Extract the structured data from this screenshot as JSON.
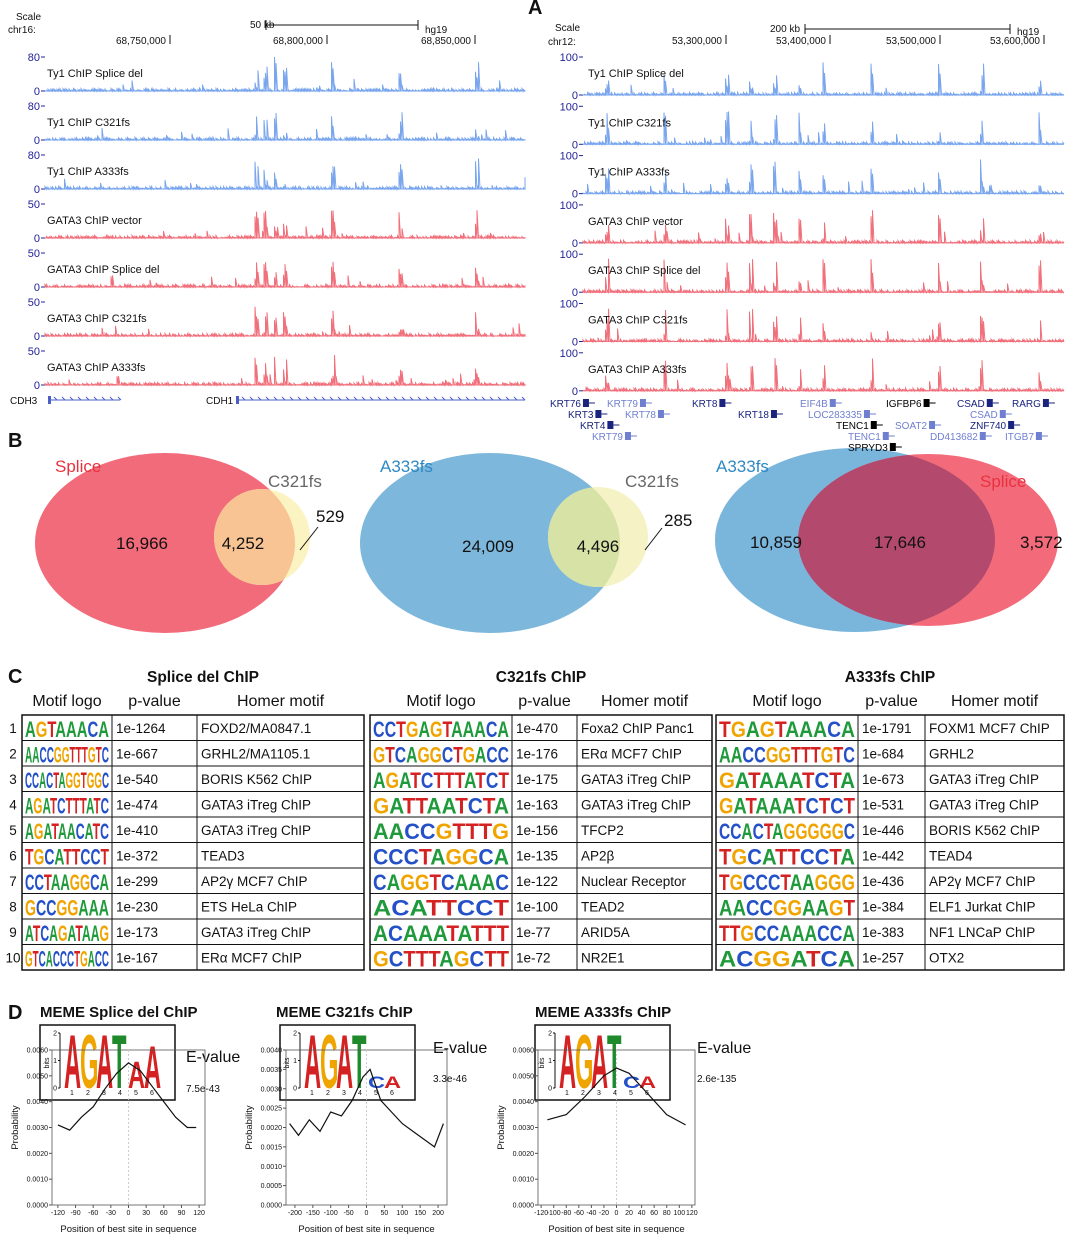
{
  "panel_labels": [
    "A",
    "B",
    "C",
    "D"
  ],
  "genome_browser": [
    {
      "scale_label": "Scale",
      "chrom": "chr16:",
      "scale_bar": "50 kb",
      "assembly": "hg19",
      "positions": [
        "68,750,000",
        "68,800,000",
        "68,850,000"
      ],
      "tracks": [
        {
          "name": "Ty1 ChIP Splice del",
          "color": "#7aa6ee",
          "ylim": [
            0,
            80
          ],
          "yticks": [
            0,
            80
          ]
        },
        {
          "name": "Ty1 ChIP C321fs",
          "color": "#7aa6ee",
          "ylim": [
            0,
            80
          ],
          "yticks": [
            0,
            80
          ]
        },
        {
          "name": "Ty1 ChIP A333fs",
          "color": "#7aa6ee",
          "ylim": [
            0,
            80
          ],
          "yticks": [
            0,
            80
          ]
        },
        {
          "name": "GATA3 ChIP vector",
          "color": "#f0707c",
          "ylim": [
            0,
            50
          ],
          "yticks": [
            0,
            50
          ]
        },
        {
          "name": "GATA3 ChIP Splice del",
          "color": "#f0707c",
          "ylim": [
            0,
            50
          ],
          "yticks": [
            0,
            50
          ]
        },
        {
          "name": "GATA3 ChIP C321fs",
          "color": "#f0707c",
          "ylim": [
            0,
            50
          ],
          "yticks": [
            0,
            50
          ]
        },
        {
          "name": "GATA3 ChIP A333fs",
          "color": "#f0707c",
          "ylim": [
            0,
            50
          ],
          "yticks": [
            0,
            50
          ]
        }
      ],
      "genes": [
        "CDH3",
        "CDH1"
      ]
    },
    {
      "scale_label": "Scale",
      "chrom": "chr12:",
      "scale_bar": "200 kb",
      "assembly": "hg19",
      "positions": [
        "53,300,000",
        "53,400,000",
        "53,500,000",
        "53,600,000"
      ],
      "tracks": [
        {
          "name": "Ty1 ChIP Splice del",
          "color": "#7aa6ee",
          "ylim": [
            0,
            100
          ],
          "yticks": [
            0,
            100
          ]
        },
        {
          "name": "Ty1 ChIP C321fs",
          "color": "#7aa6ee",
          "ylim": [
            0,
            100
          ],
          "yticks": [
            0,
            100
          ]
        },
        {
          "name": "Ty1 ChIP A333fs",
          "color": "#7aa6ee",
          "ylim": [
            0,
            100
          ],
          "yticks": [
            0,
            100
          ]
        },
        {
          "name": "GATA3 ChIP vector",
          "color": "#f0707c",
          "ylim": [
            0,
            100
          ],
          "yticks": [
            0,
            100
          ]
        },
        {
          "name": "GATA3 ChIP Splice del",
          "color": "#f0707c",
          "ylim": [
            0,
            100
          ],
          "yticks": [
            0,
            100
          ]
        },
        {
          "name": "GATA3 ChIP C321fs",
          "color": "#f0707c",
          "ylim": [
            0,
            100
          ],
          "yticks": [
            0,
            100
          ]
        },
        {
          "name": "GATA3 ChIP A333fs",
          "color": "#f0707c",
          "ylim": [
            0,
            100
          ],
          "yticks": [
            0,
            100
          ]
        }
      ],
      "genes": [
        "KRT76",
        "KRT79",
        "KRT3",
        "KRT78",
        "KRT4",
        "KRT79",
        "KRT8",
        "KRT18",
        "EIF4B",
        "LOC283335",
        "IGFBP6",
        "CSAD",
        "RARG",
        "TENC1",
        "SOAT2",
        "CSAD",
        "ZNF740",
        "TENC1",
        "DD413682",
        "ITGB7",
        "SPRYD3"
      ]
    }
  ],
  "venns": [
    {
      "labels": [
        "Splice",
        "C321fs"
      ],
      "counts": [
        "16,966",
        "4,252",
        "529"
      ]
    },
    {
      "labels": [
        "A333fs",
        "C321fs"
      ],
      "counts": [
        "24,009",
        "4,496",
        "285"
      ]
    },
    {
      "labels": [
        "A333fs",
        "Splice"
      ],
      "counts": [
        "10,859",
        "17,646",
        "3,572"
      ]
    }
  ],
  "motif_panel": {
    "row_numbers": [
      "1",
      "2",
      "3",
      "4",
      "5",
      "6",
      "7",
      "8",
      "9",
      "10"
    ],
    "tables": [
      {
        "title": "Splice del ChIP",
        "columns": [
          "Motif logo",
          "p-value",
          "Homer motif"
        ],
        "rows": [
          {
            "logo": "AGTAAACA",
            "p_value": "1e-1264",
            "motif": "FOXD2/MA0847.1"
          },
          {
            "logo": "AACCGGTTTGTC",
            "p_value": "1e-667",
            "motif": "GRHL2/MA1105.1"
          },
          {
            "logo": "CCACTAGGTGGC",
            "p_value": "1e-540",
            "motif": "BORIS K562 ChIP"
          },
          {
            "logo": "AGATCTTTATC",
            "p_value": "1e-474",
            "motif": "GATA3 iTreg ChIP"
          },
          {
            "logo": "AGATAACATC",
            "p_value": "1e-410",
            "motif": "GATA3 iTreg ChIP"
          },
          {
            "logo": "TGCATTCCT",
            "p_value": "1e-372",
            "motif": "TEAD3"
          },
          {
            "logo": "CCTAAGGCA",
            "p_value": "1e-299",
            "motif": "AP2γ MCF7 ChIP"
          },
          {
            "logo": "GCCGGAAA",
            "p_value": "1e-230",
            "motif": "ETS HeLa ChIP"
          },
          {
            "logo": "ATCAGATAAG",
            "p_value": "1e-173",
            "motif": "GATA3 iTreg ChIP"
          },
          {
            "logo": "GTCACCCTGACC",
            "p_value": "1e-167",
            "motif": "ERα MCF7 ChIP"
          }
        ]
      },
      {
        "title": "C321fs ChIP",
        "columns": [
          "Motif logo",
          "p-value",
          "Homer motif"
        ],
        "rows": [
          {
            "logo": "CCTGAGTAAACA",
            "p_value": "1e-470",
            "motif": "Foxa2 ChIP Panc1"
          },
          {
            "logo": "GTCAGGCTGACC",
            "p_value": "1e-176",
            "motif": "ERα MCF7 ChIP"
          },
          {
            "logo": "AGATCTTTATCT",
            "p_value": "1e-175",
            "motif": "GATA3 iTreg ChIP"
          },
          {
            "logo": "GATTAATCTA",
            "p_value": "1e-163",
            "motif": "GATA3 iTreg ChIP"
          },
          {
            "logo": "AACCGTTTG",
            "p_value": "1e-156",
            "motif": "TFCP2"
          },
          {
            "logo": "CCCTAGGCA",
            "p_value": "1e-135",
            "motif": "AP2β"
          },
          {
            "logo": "CAGGTCAAAC",
            "p_value": "1e-122",
            "motif": "Nuclear Receptor"
          },
          {
            "logo": "ACATTCCT",
            "p_value": "1e-100",
            "motif": "TEAD2"
          },
          {
            "logo": "ACAAATATTT",
            "p_value": "1e-77",
            "motif": "ARID5A"
          },
          {
            "logo": "GCTTTAGCTT",
            "p_value": "1e-72",
            "motif": "NR2E1"
          }
        ]
      },
      {
        "title": "A333fs ChIP",
        "columns": [
          "Motif logo",
          "p-value",
          "Homer motif"
        ],
        "rows": [
          {
            "logo": "TGAGTAAACA",
            "p_value": "1e-1791",
            "motif": "FOXM1 MCF7 ChIP"
          },
          {
            "logo": "AACCGGTTTGTC",
            "p_value": "1e-684",
            "motif": "GRHL2"
          },
          {
            "logo": "GATAAATCTA",
            "p_value": "1e-673",
            "motif": "GATA3 iTreg ChIP"
          },
          {
            "logo": "GATAAATCTCT",
            "p_value": "1e-531",
            "motif": "GATA3 iTreg ChIP"
          },
          {
            "logo": "CCACTAGGGGGC",
            "p_value": "1e-446",
            "motif": "BORIS K562 ChIP"
          },
          {
            "logo": "TGCATTCCTA",
            "p_value": "1e-442",
            "motif": "TEAD4"
          },
          {
            "logo": "TGCCCTAAGGG",
            "p_value": "1e-436",
            "motif": "AP2γ MCF7 ChIP"
          },
          {
            "logo": "AACCGGAAGT",
            "p_value": "1e-384",
            "motif": "ELF1 Jurkat ChIP"
          },
          {
            "logo": "TTGCCAAACCA",
            "p_value": "1e-383",
            "motif": "NF1 LNCaP ChIP"
          },
          {
            "logo": "ACGGATCA",
            "p_value": "1e-257",
            "motif": "OTX2"
          }
        ]
      }
    ]
  },
  "meme": [
    {
      "title": "MEME Splice del ChIP",
      "bits_label": "bits",
      "logo": [
        "A",
        "G",
        "A",
        "T",
        "A",
        "A"
      ],
      "logo_yticks": [
        0,
        1,
        2
      ],
      "logo_positions": [
        1,
        2,
        3,
        4,
        5,
        6
      ],
      "evalue_label": "E-value",
      "evalue": "7.5e-43",
      "plot": {
        "xlabel": "Position of best site in sequence",
        "ylabel": "Probability",
        "xlim": [
          -130,
          130
        ],
        "ylim": [
          0,
          0.006
        ],
        "xticks": [
          -120,
          -90,
          -60,
          -30,
          0,
          30,
          60,
          90,
          120
        ],
        "yticks": [
          {
            "value": 0,
            "label": "0.0000"
          },
          {
            "value": 0.001,
            "label": "0.0010"
          },
          {
            "value": 0.002,
            "label": "0.0020"
          },
          {
            "value": 0.003,
            "label": "0.0030"
          },
          {
            "value": 0.004,
            "label": "0.0040"
          },
          {
            "value": 0.005,
            "label": "0.0050"
          },
          {
            "value": 0.006,
            "label": "0.0060"
          }
        ],
        "x": [
          -120,
          -100,
          -80,
          -60,
          -40,
          -20,
          0,
          20,
          40,
          60,
          80,
          100,
          115
        ],
        "values": [
          0.0031,
          0.0029,
          0.0034,
          0.0038,
          0.0045,
          0.0051,
          0.0055,
          0.0052,
          0.0046,
          0.004,
          0.0034,
          0.003,
          0.003
        ]
      }
    },
    {
      "title": "MEME C321fs ChIP",
      "bits_label": "bits",
      "logo": [
        "A",
        "G",
        "A",
        "T",
        "C",
        "A"
      ],
      "logo_yticks": [
        0,
        1,
        2
      ],
      "logo_positions": [
        1,
        2,
        3,
        4,
        5,
        6
      ],
      "evalue_label": "E-value",
      "evalue": "3.3e-46",
      "plot": {
        "xlabel": "Position of best site in sequence",
        "ylabel": "Probability",
        "xlim": [
          -225,
          225
        ],
        "ylim": [
          0,
          0.004
        ],
        "xticks": [
          -200,
          -150,
          -100,
          -50,
          0,
          50,
          100,
          150,
          200
        ],
        "yticks": [
          {
            "value": 0,
            "label": "0.0000"
          },
          {
            "value": 0.0005,
            "label": "0.0005"
          },
          {
            "value": 0.001,
            "label": "0.0010"
          },
          {
            "value": 0.0015,
            "label": "0.0015"
          },
          {
            "value": 0.002,
            "label": "0.0020"
          },
          {
            "value": 0.0025,
            "label": "0.0025"
          },
          {
            "value": 0.003,
            "label": "0.0030"
          },
          {
            "value": 0.0035,
            "label": "0.0035"
          },
          {
            "value": 0.004,
            "label": "0.0040"
          }
        ],
        "x": [
          -215,
          -190,
          -160,
          -130,
          -100,
          -70,
          -40,
          -10,
          10,
          40,
          70,
          100,
          130,
          160,
          190,
          215
        ],
        "values": [
          0.0021,
          0.0018,
          0.0022,
          0.0019,
          0.0024,
          0.0023,
          0.0027,
          0.0033,
          0.0035,
          0.0027,
          0.0024,
          0.0021,
          0.0019,
          0.0017,
          0.0015,
          0.0021
        ]
      }
    },
    {
      "title": "MEME A333fs ChIP",
      "bits_label": "bits",
      "logo": [
        "A",
        "G",
        "A",
        "T",
        "C",
        "A"
      ],
      "logo_yticks": [
        0,
        1,
        2
      ],
      "logo_positions": [
        1,
        2,
        3,
        4,
        5,
        6
      ],
      "evalue_label": "E-value",
      "evalue": "2.6e-135",
      "plot": {
        "xlabel": "Position of best site in sequence",
        "ylabel": "Probability",
        "xlim": [
          -125,
          125
        ],
        "ylim": [
          0,
          0.006
        ],
        "xticks": [
          -120,
          -100,
          -80,
          -60,
          -40,
          -20,
          0,
          20,
          40,
          60,
          80,
          100,
          120
        ],
        "yticks": [
          {
            "value": 0,
            "label": "0.0000"
          },
          {
            "value": 0.001,
            "label": "0.0010"
          },
          {
            "value": 0.002,
            "label": "0.0020"
          },
          {
            "value": 0.003,
            "label": "0.0030"
          },
          {
            "value": 0.004,
            "label": "0.0040"
          },
          {
            "value": 0.005,
            "label": "0.0050"
          },
          {
            "value": 0.006,
            "label": "0.0060"
          }
        ],
        "x": [
          -110,
          -80,
          -50,
          -20,
          0,
          20,
          50,
          80,
          110
        ],
        "values": [
          0.0033,
          0.0035,
          0.0042,
          0.005,
          0.0053,
          0.0051,
          0.0043,
          0.0035,
          0.0031
        ]
      }
    }
  ]
}
